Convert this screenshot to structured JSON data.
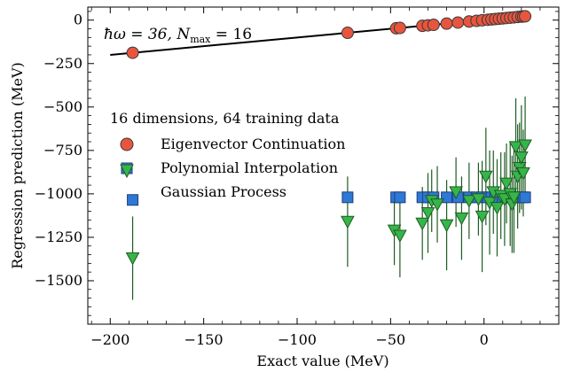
{
  "chart_data": {
    "type": "scatter",
    "xlabel": "Exact value (MeV)",
    "ylabel": "Regression prediction (MeV)",
    "xlim": [
      -212,
      40
    ],
    "ylim": [
      -1750,
      75
    ],
    "x_ticks": [
      -200,
      -150,
      -100,
      -50,
      0
    ],
    "y_ticks": [
      0,
      -250,
      -500,
      -750,
      -1000,
      -1250,
      -1500
    ],
    "x_tick_labels": [
      "−200",
      "−150",
      "−100",
      "−50",
      "0"
    ],
    "y_tick_labels": [
      "0",
      "−250",
      "−500",
      "−750",
      "−1000",
      "−1250",
      "−1500"
    ],
    "grid": false,
    "annotation": {
      "prefix": "ħω = 36, ",
      "n_symbol": "N",
      "n_subscript": "max",
      "suffix": " = 16"
    },
    "legend": {
      "placement": "left",
      "title": "16 dimensions, 64 training data"
    },
    "reference_line": {
      "x": [
        -200,
        23
      ],
      "y": [
        -200,
        23
      ],
      "color": "#000000"
    },
    "series": [
      {
        "name": "Eigenvector Continuation",
        "marker": "circle",
        "color": "#e8553e",
        "x": [
          -188,
          -73,
          -47,
          -45,
          -33,
          -30,
          -27,
          -20,
          -14,
          -8,
          -4,
          -1,
          2,
          4,
          6,
          8,
          10,
          12,
          14,
          16,
          18,
          20,
          21,
          22
        ],
        "y": [
          -188,
          -73,
          -47,
          -45,
          -33,
          -30,
          -27,
          -20,
          -14,
          -8,
          -4,
          -1,
          2,
          4,
          6,
          8,
          10,
          12,
          14,
          16,
          18,
          20,
          21,
          22
        ]
      },
      {
        "name": "Polynomial Interpolation",
        "marker": "square",
        "color": "#2e78d6",
        "x": [
          -188,
          -73,
          -47,
          -45,
          -33,
          -30,
          -27,
          -20,
          -14,
          -8,
          -4,
          -1,
          2,
          4,
          6,
          8,
          10,
          12,
          14,
          16,
          18,
          20,
          21,
          22
        ],
        "y": [
          -1035,
          -1020,
          -1020,
          -1020,
          -1020,
          -1020,
          -1020,
          -1020,
          -1020,
          -1020,
          -1020,
          -1020,
          -1020,
          -1020,
          -1020,
          -1020,
          -1020,
          -1020,
          -1020,
          -1020,
          -1020,
          -1020,
          -1020,
          -1020
        ]
      },
      {
        "name": "Gaussian Process",
        "marker": "triangle-down",
        "color": "#36b54a",
        "x": [
          -188,
          -73,
          -48,
          -45,
          -33,
          -30,
          -28,
          -25,
          -20,
          -15,
          -12,
          -8,
          -3,
          -1,
          1,
          3,
          5,
          7,
          9,
          11,
          12,
          14,
          15,
          16,
          17,
          18,
          19,
          20,
          21,
          22
        ],
        "y": [
          -1370,
          -1160,
          -1210,
          -1240,
          -1170,
          -1110,
          -1040,
          -1060,
          -1180,
          -990,
          -1140,
          -1040,
          -1030,
          -1130,
          -900,
          -1050,
          -990,
          -1080,
          -1010,
          -1030,
          -940,
          -1000,
          -1060,
          -1020,
          -730,
          -900,
          -850,
          -790,
          -880,
          -720
        ],
        "err": [
          240,
          260,
          200,
          240,
          210,
          230,
          180,
          220,
          260,
          200,
          240,
          220,
          210,
          320,
          280,
          300,
          240,
          280,
          250,
          270,
          230,
          300,
          280,
          320,
          280,
          300,
          260,
          300,
          250,
          280
        ]
      }
    ]
  }
}
